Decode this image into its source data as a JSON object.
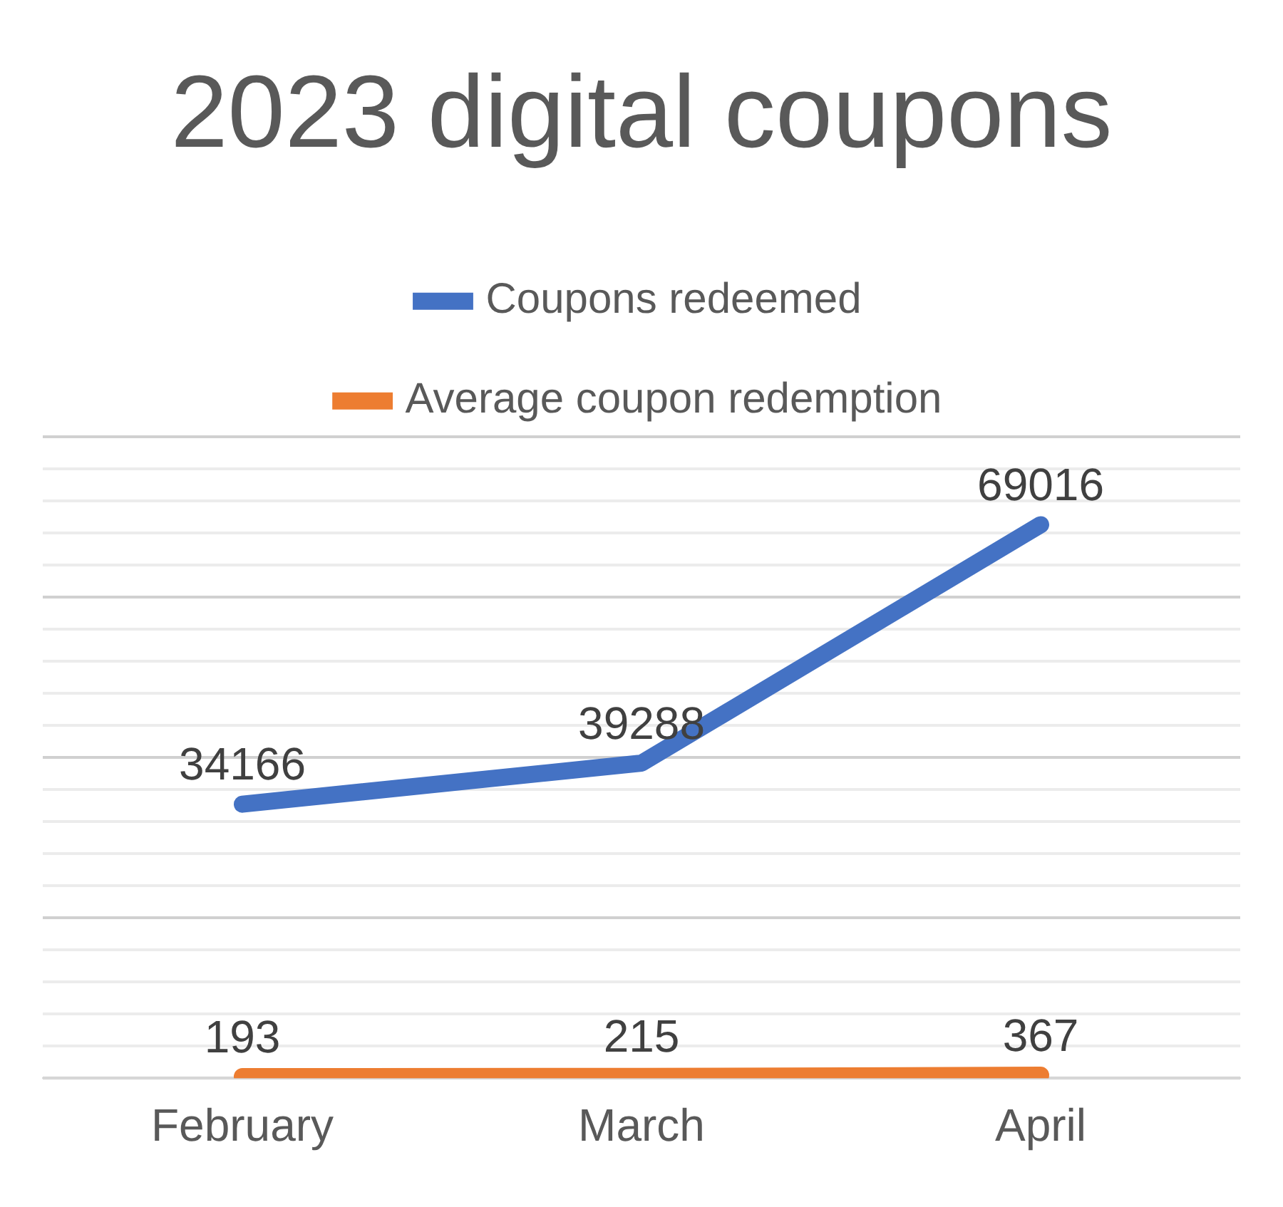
{
  "chart_data": {
    "type": "line",
    "title": "2023 digital coupons",
    "categories": [
      "February",
      "March",
      "April"
    ],
    "series": [
      {
        "name": "Coupons redeemed",
        "color": "#4472c4",
        "values": [
          34166,
          39288,
          69016
        ]
      },
      {
        "name": "Average coupon redemption",
        "color": "#ed7d31",
        "values": [
          193,
          215,
          367
        ]
      }
    ],
    "ylim": [
      0,
      80000
    ],
    "yticks": [
      {
        "value": 0,
        "label": null
      },
      {
        "value": 4000,
        "label": null
      },
      {
        "value": 8000,
        "label": null
      },
      {
        "value": 12000,
        "label": null
      },
      {
        "value": 16000,
        "label": null
      },
      {
        "value": 20000,
        "label": null
      },
      {
        "value": 24000,
        "label": null
      },
      {
        "value": 28000,
        "label": null
      },
      {
        "value": 32000,
        "label": null
      },
      {
        "value": 36000,
        "label": null
      },
      {
        "value": 40000,
        "label": null
      },
      {
        "value": 44000,
        "label": null
      },
      {
        "value": 48000,
        "label": null
      },
      {
        "value": 52000,
        "label": null
      },
      {
        "value": 56000,
        "label": null
      },
      {
        "value": 60000,
        "label": null
      },
      {
        "value": 64000,
        "label": null
      },
      {
        "value": 68000,
        "label": null
      },
      {
        "value": 72000,
        "label": null
      },
      {
        "value": 76000,
        "label": null
      },
      {
        "value": 80000,
        "label": null
      }
    ],
    "grid": "y",
    "legend": "top",
    "tick_labels": "x",
    "marker": "none",
    "line_style": "solid",
    "data_labels": true
  }
}
